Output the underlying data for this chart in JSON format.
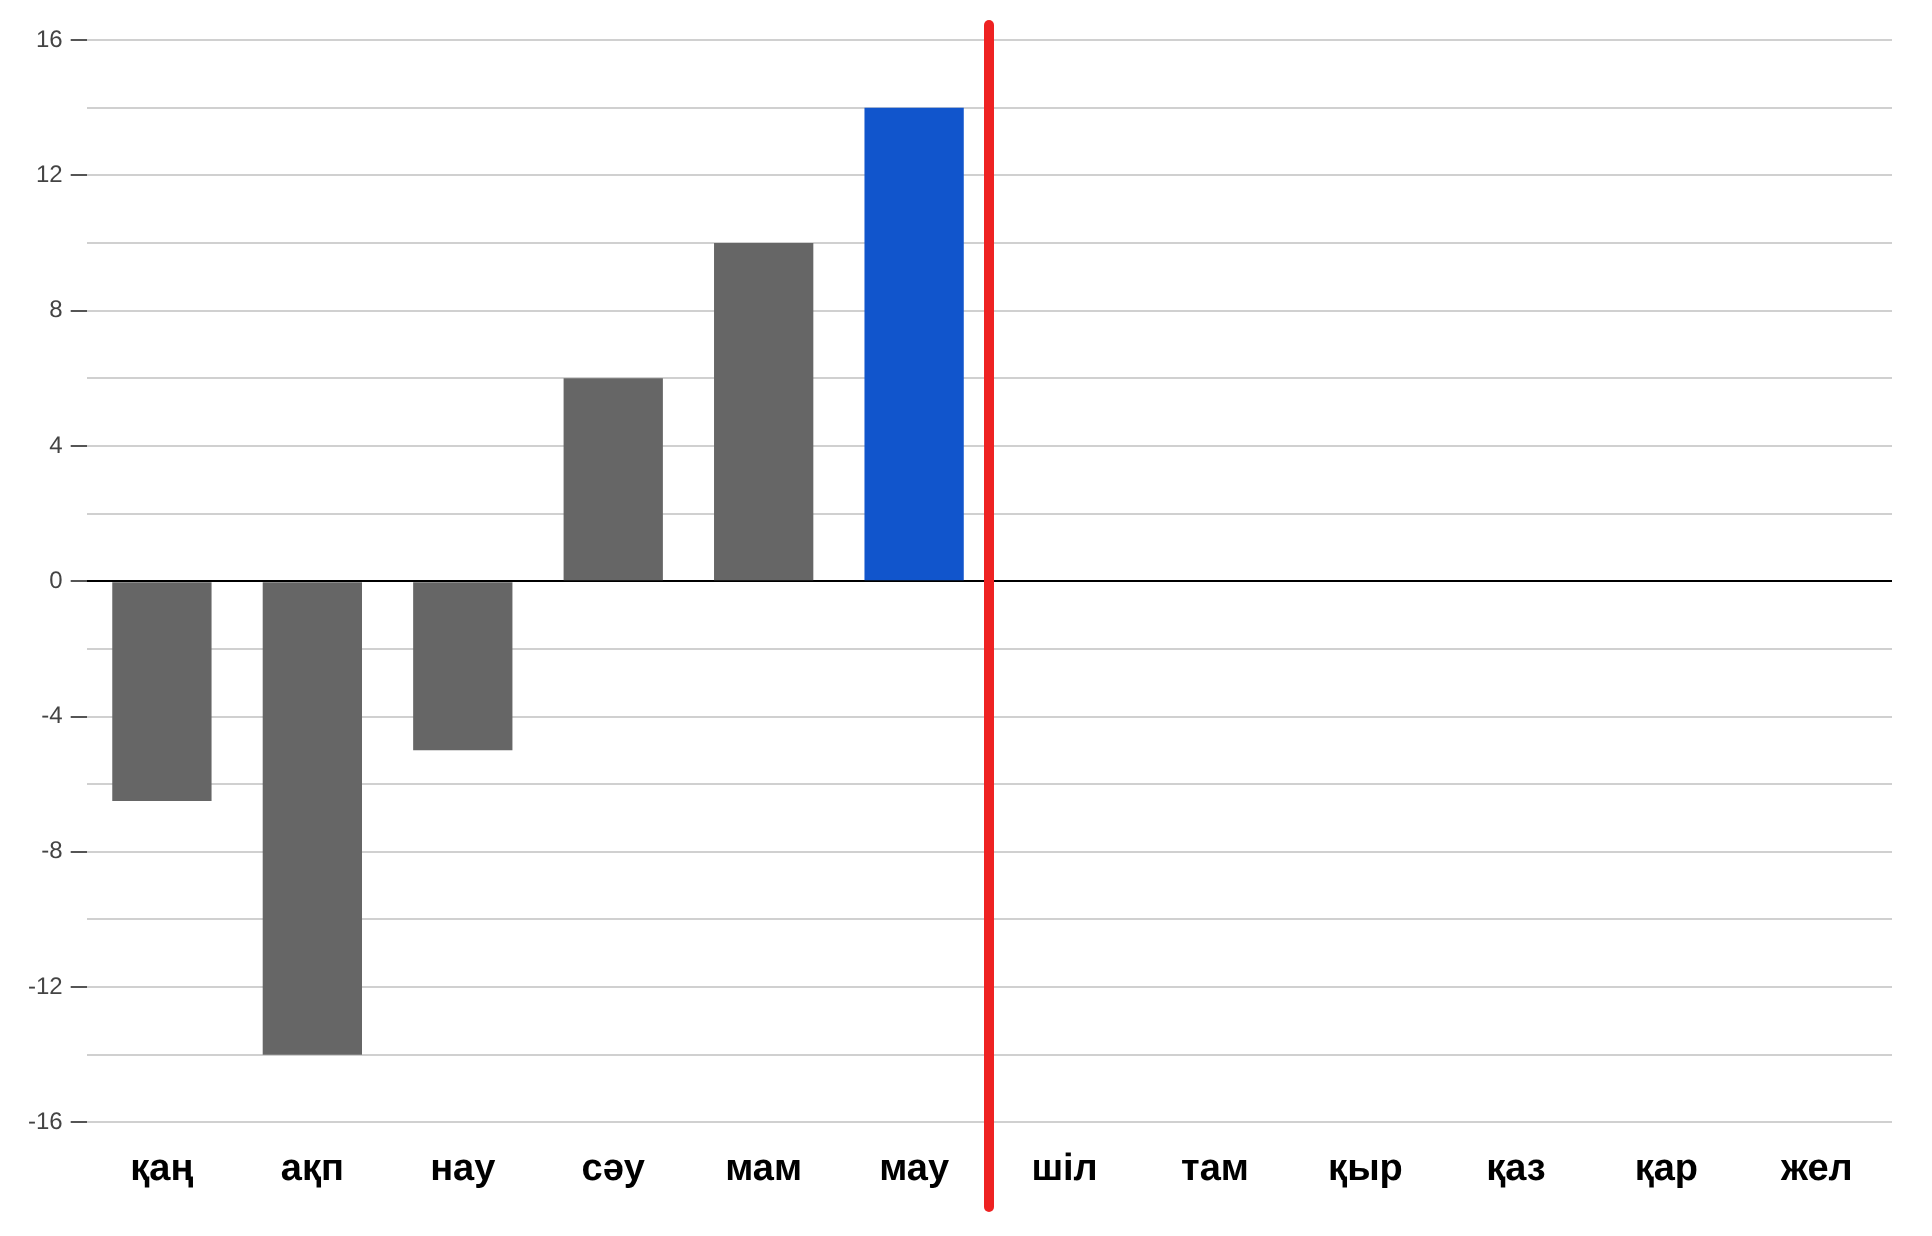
{
  "chart_data": {
    "type": "bar",
    "categories": [
      "қаң",
      "ақп",
      "нау",
      "сәу",
      "мам",
      "мау",
      "шіл",
      "там",
      "қыр",
      "қаз",
      "қар",
      "жел"
    ],
    "values": [
      -6.5,
      -14,
      -5,
      6,
      10,
      14,
      null,
      null,
      null,
      null,
      null,
      null
    ],
    "colors": [
      "#666666",
      "#666666",
      "#666666",
      "#666666",
      "#666666",
      "#1155cc",
      "#666666",
      "#666666",
      "#666666",
      "#666666",
      "#666666",
      "#666666"
    ],
    "ylim": [
      -16,
      16
    ],
    "yticks": [
      -16,
      {
        "value": -14,
        "label": null
      },
      -12,
      {
        "value": -10,
        "label": null
      },
      -8,
      {
        "value": -6,
        "label": null
      },
      -4,
      {
        "value": -2,
        "label": null
      },
      0,
      {
        "value": 2,
        "label": null
      },
      4,
      {
        "value": 6,
        "label": null
      },
      8,
      {
        "value": 10,
        "label": null
      },
      12,
      {
        "value": 14,
        "label": null
      },
      16
    ],
    "grid": "y"
  }
}
